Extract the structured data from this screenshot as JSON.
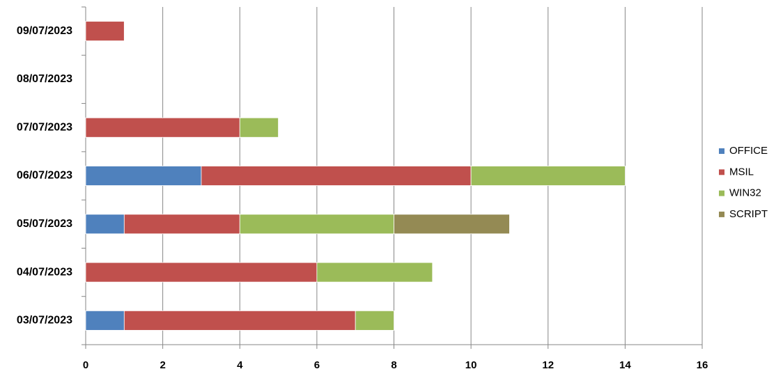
{
  "chart_data": {
    "type": "stacked-bar-horizontal",
    "categories": [
      "03/07/2023",
      "04/07/2023",
      "05/07/2023",
      "06/07/2023",
      "07/07/2023",
      "08/07/2023",
      "09/07/2023"
    ],
    "series": [
      {
        "name": "OFFICE",
        "color": "#4f81bd",
        "values": [
          1,
          0,
          1,
          3,
          0,
          0,
          0
        ]
      },
      {
        "name": "MSIL",
        "color": "#c0504d",
        "values": [
          6,
          6,
          3,
          7,
          4,
          0,
          1
        ]
      },
      {
        "name": "WIN32",
        "color": "#9bbb59",
        "values": [
          1,
          3,
          4,
          4,
          1,
          0,
          0
        ]
      },
      {
        "name": "SCRIPT",
        "color": "#948a54",
        "values": [
          0,
          0,
          3,
          0,
          0,
          0,
          0
        ]
      }
    ],
    "xlim": [
      0,
      16
    ],
    "xticks": [
      0,
      2,
      4,
      6,
      8,
      10,
      12,
      14,
      16
    ],
    "grid": true,
    "legend": "right"
  }
}
